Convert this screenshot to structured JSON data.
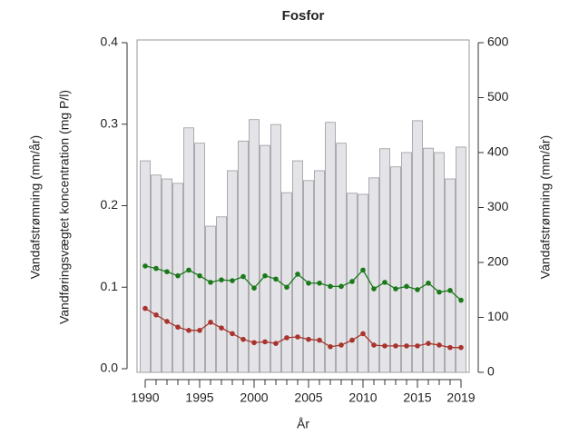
{
  "chart_data": {
    "type": "bar_line",
    "title": "Fosfor",
    "xlabel": "År",
    "ylabel_outer": "Vandafstrømning (mm/år)",
    "ylabel": "Vandføringsvægtet koncentration (mg P/l)",
    "y2label": "Vandafstrømning (mm/år)",
    "x": [
      1990,
      1991,
      1992,
      1993,
      1994,
      1995,
      1996,
      1997,
      1998,
      1999,
      2000,
      2001,
      2002,
      2003,
      2004,
      2005,
      2006,
      2007,
      2008,
      2009,
      2010,
      2011,
      2012,
      2013,
      2014,
      2015,
      2016,
      2017,
      2018,
      2019
    ],
    "xticks": [
      1990,
      1995,
      2000,
      2005,
      2010,
      2015,
      2019
    ],
    "ylim": [
      0,
      0.4
    ],
    "yticks": [
      {
        "value": 0,
        "label": "0.0"
      },
      0.1,
      0.2,
      0.3,
      0.4
    ],
    "y2lim": [
      0,
      600
    ],
    "y2ticks": [
      0,
      100,
      200,
      300,
      400,
      500,
      600
    ],
    "series": [
      {
        "type": "bar",
        "axis": "y2",
        "color": "#e4e3e8",
        "values": [
          385,
          359,
          352,
          344,
          445,
          417,
          266,
          283,
          367,
          421,
          460,
          413,
          451,
          327,
          385,
          349,
          367,
          455,
          417,
          326,
          324,
          354,
          407,
          374,
          400,
          458,
          408,
          400,
          352,
          410
        ]
      },
      {
        "type": "line",
        "color": "#1a7a1a",
        "values": [
          0.126,
          0.123,
          0.119,
          0.114,
          0.121,
          0.114,
          0.106,
          0.109,
          0.108,
          0.113,
          0.099,
          0.114,
          0.11,
          0.1,
          0.116,
          0.105,
          0.105,
          0.101,
          0.101,
          0.107,
          0.121,
          0.098,
          0.106,
          0.098,
          0.101,
          0.097,
          0.105,
          0.094,
          0.096,
          0.084
        ]
      },
      {
        "type": "line",
        "color": "#a8342c",
        "values": [
          0.074,
          0.066,
          0.058,
          0.051,
          0.047,
          0.047,
          0.057,
          0.05,
          0.043,
          0.036,
          0.032,
          0.033,
          0.031,
          0.038,
          0.039,
          0.036,
          0.035,
          0.027,
          0.029,
          0.035,
          0.043,
          0.029,
          0.028,
          0.028,
          0.028,
          0.028,
          0.031,
          0.029,
          0.026,
          0.026
        ]
      }
    ]
  }
}
